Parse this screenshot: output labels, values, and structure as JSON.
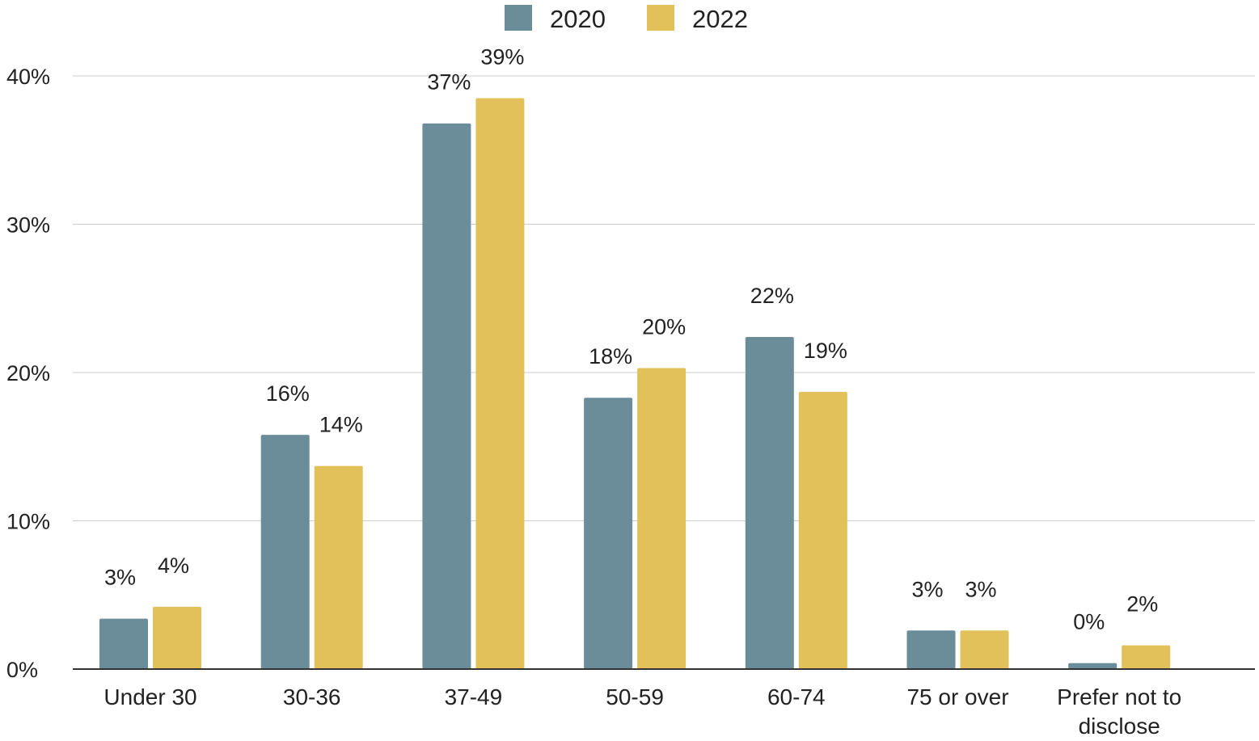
{
  "chart_data": {
    "type": "bar",
    "title": "",
    "xlabel": "",
    "ylabel": "",
    "categories": [
      [
        "Under 30"
      ],
      [
        "30-36"
      ],
      [
        "37-49"
      ],
      [
        "50-59"
      ],
      [
        "60-74"
      ],
      [
        "75 or over"
      ],
      [
        "Prefer not to",
        "disclose"
      ]
    ],
    "series": [
      {
        "name": "2020",
        "color": "#6a8d99",
        "values": [
          3.4,
          15.8,
          36.8,
          18.3,
          22.4,
          2.6,
          0.4
        ],
        "labels": [
          "3%",
          "16%",
          "37%",
          "18%",
          "22%",
          "3%",
          "0%"
        ]
      },
      {
        "name": "2022",
        "color": "#e2c15a",
        "values": [
          4.2,
          13.7,
          38.5,
          20.3,
          18.7,
          2.6,
          1.6
        ],
        "labels": [
          "4%",
          "14%",
          "39%",
          "20%",
          "19%",
          "3%",
          "2%"
        ]
      }
    ],
    "ylim": [
      0,
      40
    ],
    "yticks": [
      0,
      10,
      20,
      30,
      40
    ],
    "ytick_labels": [
      "0%",
      "10%",
      "20%",
      "30%",
      "40%"
    ],
    "grid": true,
    "legend_position": "top-center"
  }
}
